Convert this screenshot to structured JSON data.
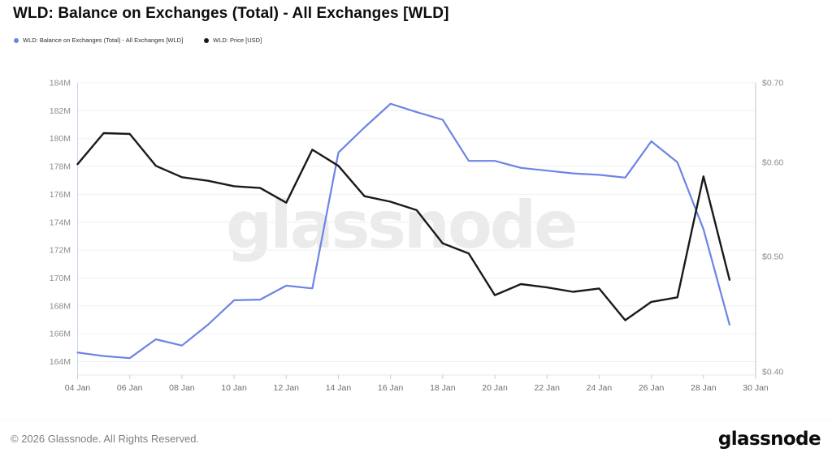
{
  "header": {
    "title": "WLD: Balance on Exchanges (Total) - All Exchanges [WLD]"
  },
  "legend": {
    "items": [
      {
        "label": "WLD: Balance on Exchanges (Total) - All Exchanges [WLD]",
        "color": "#6c84e4"
      },
      {
        "label": "WLD: Price [USD]",
        "color": "#1a1a1a"
      }
    ]
  },
  "watermark": "glassnode",
  "footer": {
    "copyright": "© 2026 Glassnode. All Rights Reserved.",
    "brand": "glassnode"
  },
  "chart_data": {
    "type": "line",
    "title": "WLD: Balance on Exchanges (Total) - All Exchanges [WLD]",
    "x": [
      "04 Jan",
      "05 Jan",
      "06 Jan",
      "07 Jan",
      "08 Jan",
      "09 Jan",
      "10 Jan",
      "11 Jan",
      "12 Jan",
      "13 Jan",
      "14 Jan",
      "15 Jan",
      "16 Jan",
      "17 Jan",
      "18 Jan",
      "19 Jan",
      "20 Jan",
      "21 Jan",
      "22 Jan",
      "23 Jan",
      "24 Jan",
      "25 Jan",
      "26 Jan",
      "27 Jan",
      "28 Jan",
      "29 Jan"
    ],
    "x_axis": {
      "tick_labels": [
        "04 Jan",
        "06 Jan",
        "08 Jan",
        "10 Jan",
        "12 Jan",
        "14 Jan",
        "16 Jan",
        "18 Jan",
        "20 Jan",
        "22 Jan",
        "24 Jan",
        "26 Jan",
        "28 Jan",
        "30 Jan"
      ],
      "tick_days": [
        4,
        6,
        8,
        10,
        12,
        14,
        16,
        18,
        20,
        22,
        24,
        26,
        28,
        30
      ],
      "range_days": [
        4,
        30
      ]
    },
    "left_axis": {
      "name": "WLD Balance on Exchanges",
      "scale": "linear",
      "unit": "WLD",
      "tick_labels": [
        "164M",
        "166M",
        "168M",
        "170M",
        "172M",
        "174M",
        "176M",
        "178M",
        "180M",
        "182M",
        "184M"
      ],
      "tick_values_millions": [
        164,
        166,
        168,
        170,
        172,
        174,
        176,
        178,
        180,
        182,
        184
      ],
      "range_millions": [
        164,
        184
      ]
    },
    "right_axis": {
      "name": "WLD Price",
      "scale": "log",
      "unit": "USD",
      "tick_labels": [
        "$0.40",
        "$0.50",
        "$0.60",
        "$0.70"
      ],
      "tick_values": [
        0.4,
        0.5,
        0.6,
        0.7
      ],
      "range": [
        0.4,
        0.7
      ]
    },
    "grid": "horizontal",
    "legend_position": "top-left",
    "series": [
      {
        "name": "WLD: Balance on Exchanges (Total) - All Exchanges [WLD]",
        "axis": "left",
        "color": "#6c84e4",
        "unit": "WLD millions",
        "values": [
          164.65,
          164.4,
          164.25,
          165.6,
          165.15,
          166.65,
          168.4,
          168.45,
          169.45,
          169.25,
          179.0,
          180.8,
          182.5,
          181.9,
          181.35,
          178.4,
          178.4,
          177.9,
          177.7,
          177.5,
          177.4,
          177.2,
          179.8,
          178.3,
          173.5,
          166.65
        ]
      },
      {
        "name": "WLD: Price [USD]",
        "axis": "right",
        "color": "#1a1a1a",
        "unit": "USD",
        "values": [
          0.598,
          0.635,
          0.634,
          0.596,
          0.583,
          0.579,
          0.573,
          0.571,
          0.555,
          0.615,
          0.596,
          0.562,
          0.556,
          0.547,
          0.513,
          0.503,
          0.464,
          0.474,
          0.471,
          0.467,
          0.47,
          0.442,
          0.458,
          0.462,
          0.584,
          0.478
        ]
      }
    ]
  }
}
